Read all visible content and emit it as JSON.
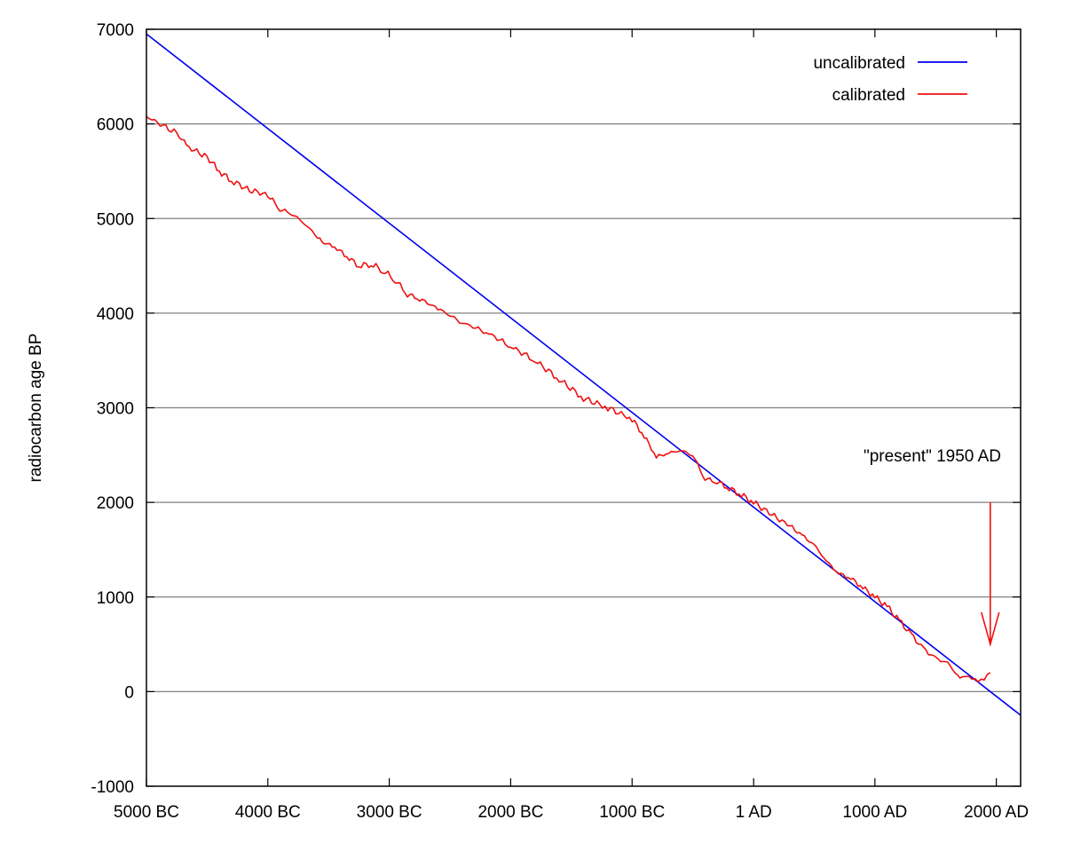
{
  "chart_data": {
    "type": "line",
    "title": "",
    "xlabel": "",
    "ylabel": "radiocarbon age BP",
    "x_unit": "calendar year (negative = BC)",
    "xlim": [
      -5000,
      2200
    ],
    "ylim": [
      -1000,
      7000
    ],
    "grid": "horizontal",
    "legend_position": "top-right",
    "x_ticks": [
      {
        "value": -5000,
        "label": "5000 BC"
      },
      {
        "value": -4000,
        "label": "4000 BC"
      },
      {
        "value": -3000,
        "label": "3000 BC"
      },
      {
        "value": -2000,
        "label": "2000 BC"
      },
      {
        "value": -1000,
        "label": "1000 BC"
      },
      {
        "value": 1,
        "label": "1 AD"
      },
      {
        "value": 1000,
        "label": "1000 AD"
      },
      {
        "value": 2000,
        "label": "2000 AD"
      }
    ],
    "y_ticks": [
      {
        "value": 7000,
        "label": "7000"
      },
      {
        "value": 6000,
        "label": "6000"
      },
      {
        "value": 5000,
        "label": "5000"
      },
      {
        "value": 4000,
        "label": "4000"
      },
      {
        "value": 3000,
        "label": "3000"
      },
      {
        "value": 2000,
        "label": "2000"
      },
      {
        "value": 1000,
        "label": "1000"
      },
      {
        "value": 0,
        "label": "0"
      },
      {
        "value": -1000,
        "label": "-1000"
      }
    ],
    "series": [
      {
        "name": "uncalibrated",
        "color": "#0000ee",
        "x": [
          -5000,
          2200
        ],
        "y": [
          6950,
          -250
        ]
      },
      {
        "name": "calibrated",
        "color": "#ee1111",
        "x": [
          -5000,
          -4750,
          -4650,
          -4500,
          -4400,
          -4300,
          -4150,
          -4000,
          -3900,
          -3800,
          -3700,
          -3550,
          -3450,
          -3350,
          -3250,
          -3150,
          -3050,
          -2950,
          -2850,
          -2750,
          -2600,
          -2400,
          -2200,
          -2000,
          -1800,
          -1600,
          -1400,
          -1200,
          -1000,
          -900,
          -800,
          -700,
          -600,
          -500,
          -400,
          -300,
          -200,
          -100,
          0,
          150,
          300,
          400,
          500,
          600,
          700,
          800,
          900,
          1000,
          1100,
          1200,
          1300,
          1400,
          1500,
          1600,
          1700,
          1750,
          1800,
          1850,
          1900,
          1950
        ],
        "y": [
          6080,
          5900,
          5750,
          5650,
          5500,
          5400,
          5300,
          5250,
          5100,
          5050,
          4950,
          4750,
          4700,
          4600,
          4500,
          4520,
          4450,
          4350,
          4200,
          4150,
          4050,
          3900,
          3800,
          3650,
          3500,
          3300,
          3100,
          3000,
          2880,
          2700,
          2480,
          2520,
          2550,
          2500,
          2250,
          2220,
          2150,
          2080,
          2000,
          1870,
          1750,
          1650,
          1550,
          1380,
          1250,
          1200,
          1100,
          1000,
          900,
          750,
          600,
          450,
          350,
          300,
          140,
          160,
          130,
          100,
          110,
          200
        ]
      }
    ],
    "annotations": [
      {
        "text": "\"present\" 1950 AD",
        "arrow_x": 1950,
        "arrow_from_y": 2000,
        "arrow_to_y": 500,
        "color": "#ee1111"
      }
    ]
  }
}
